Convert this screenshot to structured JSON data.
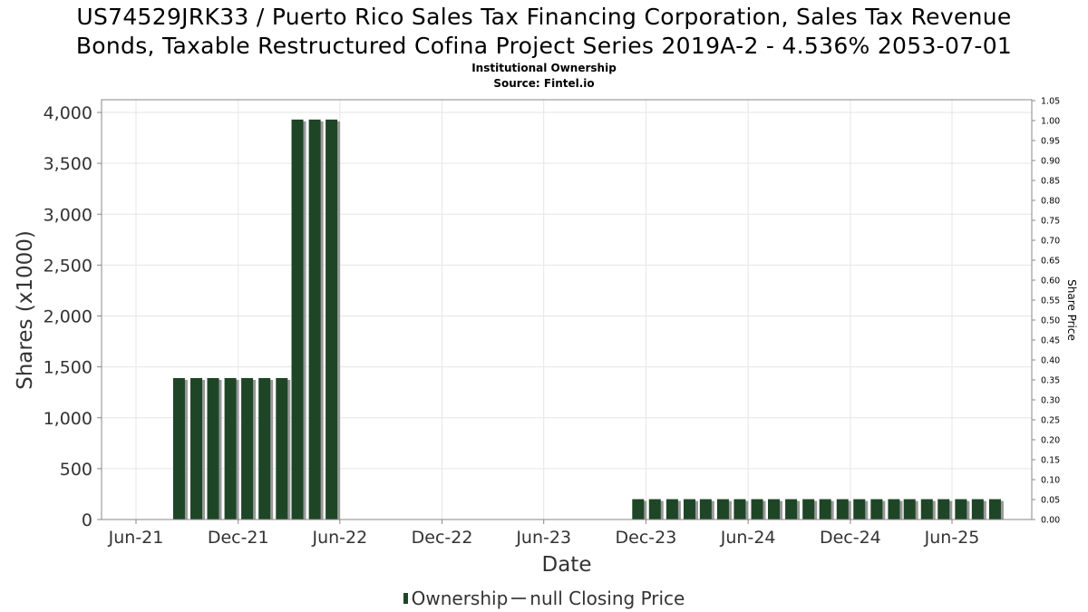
{
  "header": {
    "title_line1": "US74529JRK33 / Puerto Rico Sales Tax Financing Corporation, Sales Tax Revenue",
    "title_line2": "Bonds, Taxable Restructured Cofina Project Series 2019A-2 - 4.536% 2053-07-01",
    "subtitle_line1": "Institutional Ownership",
    "subtitle_line2": "Source: Fintel.io"
  },
  "legend": {
    "ownership_label": "Ownership",
    "price_label": "null Closing Price"
  },
  "colors": {
    "bar": "#1e4626",
    "bar_shadow": "#999999",
    "grid": "#e6e6e6",
    "axis": "#888888"
  },
  "chart_data": {
    "type": "bar",
    "title": "US74529JRK33 / Puerto Rico Sales Tax Financing Corporation, Sales Tax Revenue Bonds, Taxable Restructured Cofina Project Series 2019A-2 - 4.536% 2053-07-01",
    "xlabel": "Date",
    "ylabel": "Shares (x1000)",
    "y2label": "Share Price",
    "ylim": [
      0,
      4100
    ],
    "y2lim": [
      0,
      1.05
    ],
    "yticks": [
      "0",
      "500",
      "1,000",
      "1,500",
      "2,000",
      "2,500",
      "3,000",
      "3,500",
      "4,000"
    ],
    "ytick_values": [
      0,
      500,
      1000,
      1500,
      2000,
      2500,
      3000,
      3500,
      4000
    ],
    "y2ticks": [
      "0.00",
      "0.05",
      "0.10",
      "0.15",
      "0.20",
      "0.25",
      "0.30",
      "0.35",
      "0.40",
      "0.45",
      "0.50",
      "0.55",
      "0.60",
      "0.65",
      "0.70",
      "0.75",
      "0.80",
      "0.85",
      "0.90",
      "0.95",
      "1.00",
      "1.05"
    ],
    "xticks": [
      {
        "label": "Jun-21",
        "date": "2021-06-01"
      },
      {
        "label": "Dec-21",
        "date": "2021-12-01"
      },
      {
        "label": "Jun-22",
        "date": "2022-06-01"
      },
      {
        "label": "Dec-22",
        "date": "2022-12-01"
      },
      {
        "label": "Jun-23",
        "date": "2023-06-01"
      },
      {
        "label": "Dec-23",
        "date": "2023-12-01"
      },
      {
        "label": "Jun-24",
        "date": "2024-06-01"
      },
      {
        "label": "Dec-24",
        "date": "2024-12-01"
      },
      {
        "label": "Jun-25",
        "date": "2025-06-01"
      }
    ],
    "xlim": [
      "2021-05-01",
      "2025-12-01"
    ],
    "grid": true,
    "legend_position": "bottom",
    "series": [
      {
        "name": "Ownership",
        "points": [
          {
            "date": "2021-08-17",
            "value": 1390
          },
          {
            "date": "2021-09-17",
            "value": 1390
          },
          {
            "date": "2021-10-17",
            "value": 1390
          },
          {
            "date": "2021-11-17",
            "value": 1390
          },
          {
            "date": "2021-12-17",
            "value": 1390
          },
          {
            "date": "2022-01-17",
            "value": 1390
          },
          {
            "date": "2022-02-17",
            "value": 1390
          },
          {
            "date": "2022-03-17",
            "value": 3930
          },
          {
            "date": "2022-04-17",
            "value": 3930
          },
          {
            "date": "2022-05-17",
            "value": 3930
          },
          {
            "date": "2023-11-17",
            "value": 200
          },
          {
            "date": "2023-12-17",
            "value": 200
          },
          {
            "date": "2024-01-17",
            "value": 200
          },
          {
            "date": "2024-02-17",
            "value": 200
          },
          {
            "date": "2024-03-17",
            "value": 200
          },
          {
            "date": "2024-04-17",
            "value": 200
          },
          {
            "date": "2024-05-17",
            "value": 200
          },
          {
            "date": "2024-06-17",
            "value": 200
          },
          {
            "date": "2024-07-17",
            "value": 200
          },
          {
            "date": "2024-08-17",
            "value": 200
          },
          {
            "date": "2024-09-17",
            "value": 200
          },
          {
            "date": "2024-10-17",
            "value": 200
          },
          {
            "date": "2024-11-17",
            "value": 200
          },
          {
            "date": "2024-12-17",
            "value": 200
          },
          {
            "date": "2025-01-17",
            "value": 200
          },
          {
            "date": "2025-02-17",
            "value": 200
          },
          {
            "date": "2025-03-17",
            "value": 200
          },
          {
            "date": "2025-04-17",
            "value": 200
          },
          {
            "date": "2025-05-17",
            "value": 200
          },
          {
            "date": "2025-06-17",
            "value": 200
          },
          {
            "date": "2025-07-17",
            "value": 200
          },
          {
            "date": "2025-08-17",
            "value": 200
          }
        ]
      }
    ]
  }
}
